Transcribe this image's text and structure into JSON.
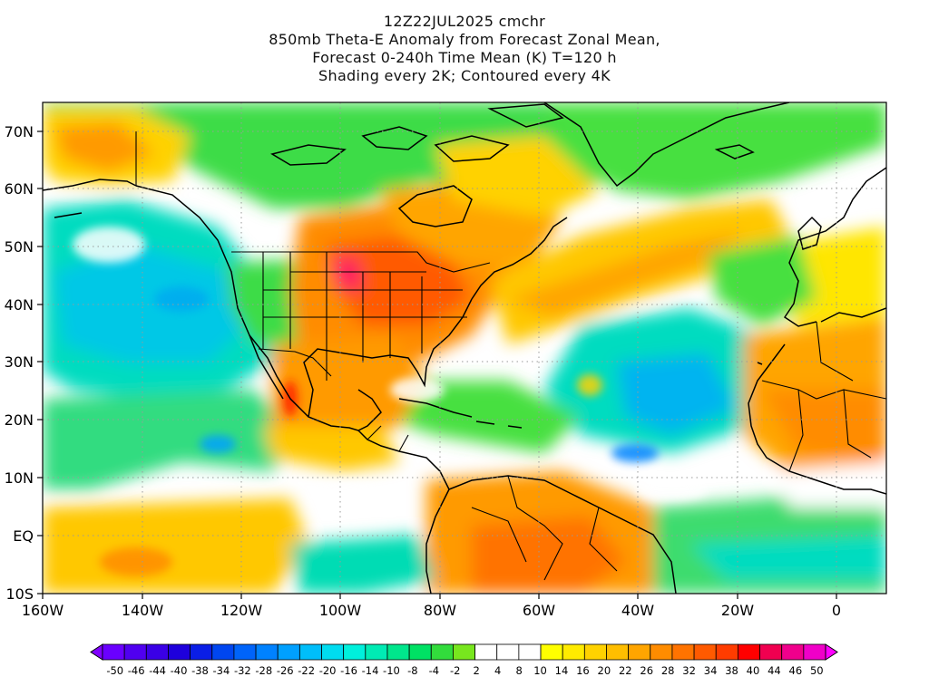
{
  "title": {
    "line1": "12Z22JUL2025 cmchr",
    "line2": "850mb Theta-E Anomaly from Forecast Zonal Mean,",
    "line3": "Forecast 0-240h Time Mean (K) T=120 h",
    "line4": "Shading every 2K; Contoured every 4K"
  },
  "map": {
    "lon_labels": [
      "160W",
      "140W",
      "120W",
      "100W",
      "80W",
      "60W",
      "40W",
      "20W",
      "0"
    ],
    "lat_labels": [
      "70N",
      "60N",
      "50N",
      "40N",
      "30N",
      "20N",
      "10N",
      "EQ",
      "10S"
    ],
    "lon_range": [
      -160,
      10
    ],
    "lat_range": [
      -10,
      75
    ],
    "grid": "dotted",
    "background_color": "#ffffff"
  },
  "colorbar": {
    "labels": [
      "-50",
      "-46",
      "-44",
      "-40",
      "-38",
      "-34",
      "-32",
      "-28",
      "-26",
      "-22",
      "-20",
      "-16",
      "-14",
      "-10",
      "-8",
      "-4",
      "-2",
      "2",
      "4",
      "8",
      "10",
      "14",
      "16",
      "20",
      "22",
      "26",
      "28",
      "32",
      "34",
      "38",
      "40",
      "44",
      "46",
      "50"
    ],
    "colors": [
      "#8000ff",
      "#6a00ff",
      "#5000f0",
      "#3a00e6",
      "#1e00dc",
      "#0a1ee6",
      "#0046f0",
      "#0064fa",
      "#0082ff",
      "#00a0ff",
      "#00befa",
      "#00dcf0",
      "#00f0dc",
      "#00ebb4",
      "#00e68c",
      "#00e164",
      "#32dc3c",
      "#78e61e",
      "#ffffff",
      "#ffffff",
      "#ffffff",
      "#ffff00",
      "#ffeb00",
      "#ffd200",
      "#ffbe00",
      "#ffa500",
      "#ff8c00",
      "#ff7300",
      "#ff5a00",
      "#ff3c00",
      "#ff0000",
      "#f00050",
      "#f0008c",
      "#f000c8",
      "#ff00ff"
    ]
  }
}
